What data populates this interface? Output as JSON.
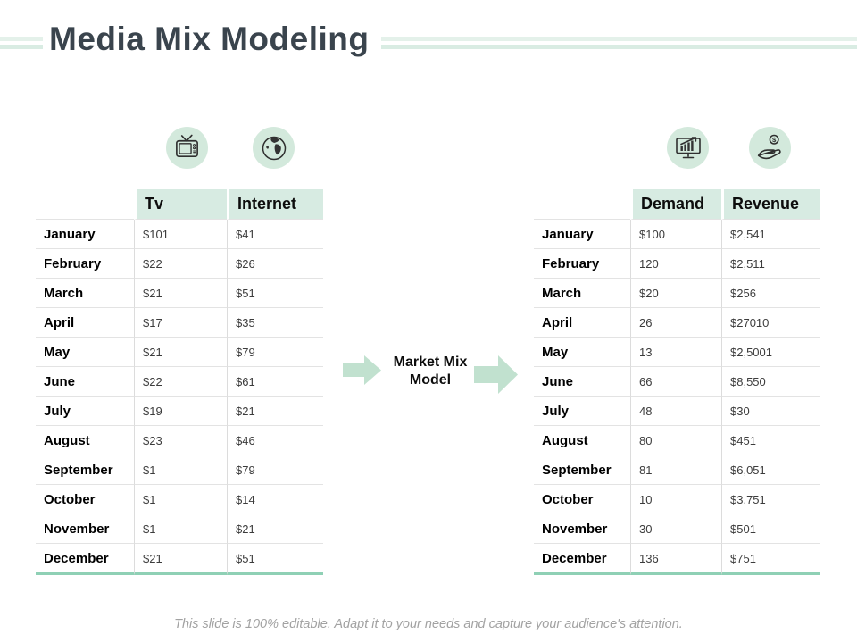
{
  "slide": {
    "title": "Media Mix Modeling",
    "center_label": "Market Mix Model",
    "footer": "This slide is 100% editable. Adapt it to your needs and capture your audience's attention."
  },
  "icons": {
    "media_channel_1": "tv-icon",
    "media_channel_2": "globe-icon",
    "outcome_1": "chart-monitor-icon",
    "outcome_2": "hand-dollar-icon"
  },
  "colors": {
    "title_text": "#3a444d",
    "stripe_green": "#dcEde4",
    "header_cell_bg": "#d7ebe2",
    "icon_circle_bg": "#d3e9dc",
    "arrow_green": "#c1e1cf",
    "table_bottom_border": "#8fd0b5",
    "row_divider": "#e3e3e3",
    "footer_text": "#a2a2a2"
  },
  "media_table": {
    "columns": [
      "Tv",
      "Internet"
    ],
    "rows": [
      {
        "month": "January",
        "values": [
          "$101",
          "$41"
        ]
      },
      {
        "month": "February",
        "values": [
          "$22",
          "$26"
        ]
      },
      {
        "month": "March",
        "values": [
          "$21",
          "$51"
        ]
      },
      {
        "month": "April",
        "values": [
          "$17",
          "$35"
        ]
      },
      {
        "month": "May",
        "values": [
          "$21",
          "$79"
        ]
      },
      {
        "month": "June",
        "values": [
          "$22",
          "$61"
        ]
      },
      {
        "month": "July",
        "values": [
          "$19",
          "$21"
        ]
      },
      {
        "month": "August",
        "values": [
          "$23",
          "$46"
        ]
      },
      {
        "month": "September",
        "values": [
          "$1",
          "$79"
        ]
      },
      {
        "month": "October",
        "values": [
          "$1",
          "$14"
        ]
      },
      {
        "month": "November",
        "values": [
          "$1",
          "$21"
        ]
      },
      {
        "month": "December",
        "values": [
          "$21",
          "$51"
        ]
      }
    ]
  },
  "outcome_table": {
    "columns": [
      "Demand",
      "Revenue"
    ],
    "rows": [
      {
        "month": "January",
        "values": [
          "$100",
          "$2,541"
        ]
      },
      {
        "month": "February",
        "values": [
          "120",
          "$2,511"
        ]
      },
      {
        "month": "March",
        "values": [
          "$20",
          "$256"
        ]
      },
      {
        "month": "April",
        "values": [
          "26",
          "$27010"
        ]
      },
      {
        "month": "May",
        "values": [
          "13",
          "$2,5001"
        ]
      },
      {
        "month": "June",
        "values": [
          "66",
          "$8,550"
        ]
      },
      {
        "month": "July",
        "values": [
          "48",
          "$30"
        ]
      },
      {
        "month": "August",
        "values": [
          "80",
          "$451"
        ]
      },
      {
        "month": "September",
        "values": [
          "81",
          "$6,051"
        ]
      },
      {
        "month": "October",
        "values": [
          "10",
          "$3,751"
        ]
      },
      {
        "month": "November",
        "values": [
          "30",
          "$501"
        ]
      },
      {
        "month": "December",
        "values": [
          "136",
          "$751"
        ]
      }
    ]
  }
}
